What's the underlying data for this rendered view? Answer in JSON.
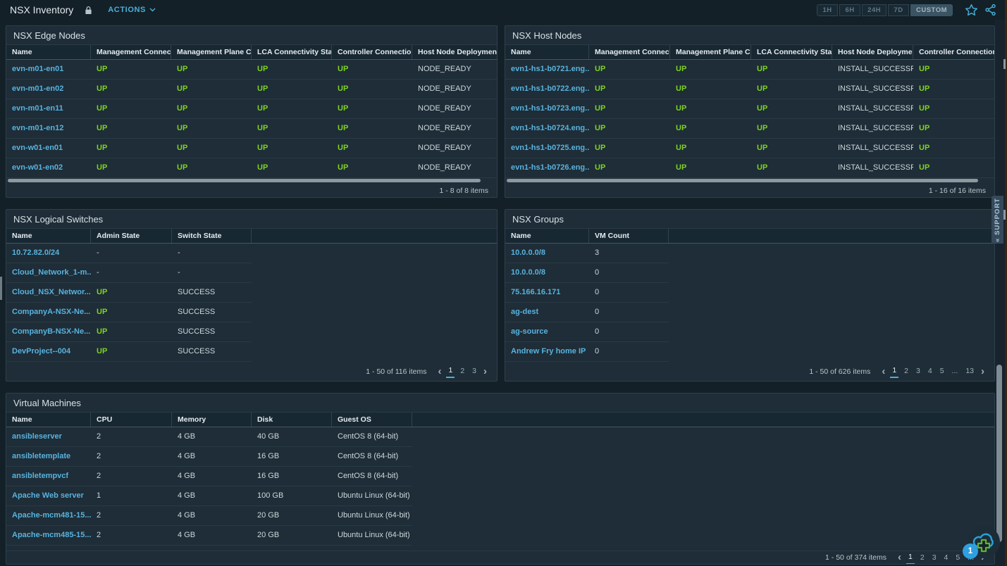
{
  "topbar": {
    "title": "NSX Inventory",
    "actions_label": "ACTIONS",
    "time_ranges": [
      "1H",
      "6H",
      "24H",
      "7D",
      "CUSTOM"
    ],
    "selected_time_range": "CUSTOM"
  },
  "panels": {
    "edge_nodes": {
      "title": "NSX Edge Nodes",
      "columns": [
        "Name",
        "Management Connection...",
        "Management Plane Conn...",
        "LCA Connectivity Status",
        "Controller Connection St...",
        "Host Node Deployment ..."
      ],
      "rows": [
        [
          "evn-m01-en01",
          "UP",
          "UP",
          "UP",
          "UP",
          "NODE_READY"
        ],
        [
          "evn-m01-en02",
          "UP",
          "UP",
          "UP",
          "UP",
          "NODE_READY"
        ],
        [
          "evn-m01-en11",
          "UP",
          "UP",
          "UP",
          "UP",
          "NODE_READY"
        ],
        [
          "evn-m01-en12",
          "UP",
          "UP",
          "UP",
          "UP",
          "NODE_READY"
        ],
        [
          "evn-w01-en01",
          "UP",
          "UP",
          "UP",
          "UP",
          "NODE_READY"
        ],
        [
          "evn-w01-en02",
          "UP",
          "UP",
          "UP",
          "UP",
          "NODE_READY"
        ]
      ],
      "pager": {
        "label": "1 - 8 of 8 items",
        "pages": []
      }
    },
    "host_nodes": {
      "title": "NSX Host Nodes",
      "columns": [
        "Name",
        "Management Connection...",
        "Management Plane Conn...",
        "LCA Connectivity Status",
        "Host Node Deployment ...",
        "Controller Connection St..."
      ],
      "rows": [
        [
          "evn1-hs1-b0721.eng...",
          "UP",
          "UP",
          "UP",
          "INSTALL_SUCCESSF...",
          "UP"
        ],
        [
          "evn1-hs1-b0722.eng...",
          "UP",
          "UP",
          "UP",
          "INSTALL_SUCCESSF...",
          "UP"
        ],
        [
          "evn1-hs1-b0723.eng...",
          "UP",
          "UP",
          "UP",
          "INSTALL_SUCCESSF...",
          "UP"
        ],
        [
          "evn1-hs1-b0724.eng...",
          "UP",
          "UP",
          "UP",
          "INSTALL_SUCCESSF...",
          "UP"
        ],
        [
          "evn1-hs1-b0725.eng...",
          "UP",
          "UP",
          "UP",
          "INSTALL_SUCCESSF...",
          "UP"
        ],
        [
          "evn1-hs1-b0726.eng...",
          "UP",
          "UP",
          "UP",
          "INSTALL_SUCCESSF...",
          "UP"
        ]
      ],
      "pager": {
        "label": "1 - 16 of 16 items",
        "pages": []
      }
    },
    "logical_switches": {
      "title": "NSX Logical Switches",
      "columns": [
        "Name",
        "Admin State",
        "Switch State"
      ],
      "rows": [
        [
          "10.72.82.0/24",
          "-",
          "-"
        ],
        [
          "Cloud_Network_1-m...",
          "-",
          "-"
        ],
        [
          "Cloud_NSX_Networ...",
          "UP",
          "SUCCESS"
        ],
        [
          "CompanyA-NSX-Ne...",
          "UP",
          "SUCCESS"
        ],
        [
          "CompanyB-NSX-Ne...",
          "UP",
          "SUCCESS"
        ],
        [
          "DevProject--004",
          "UP",
          "SUCCESS"
        ]
      ],
      "pager": {
        "label": "1 - 50 of 116 items",
        "pages": [
          "1",
          "2",
          "3"
        ],
        "selected": "1"
      }
    },
    "groups": {
      "title": "NSX Groups",
      "columns": [
        "Name",
        "VM Count"
      ],
      "rows": [
        [
          "10.0.0.0/8",
          "3"
        ],
        [
          "10.0.0.0/8",
          "0"
        ],
        [
          "75.166.16.171",
          "0"
        ],
        [
          "ag-dest",
          "0"
        ],
        [
          "ag-source",
          "0"
        ],
        [
          "Andrew Fry home IP",
          "0"
        ]
      ],
      "pager": {
        "label": "1 - 50 of 626 items",
        "pages": [
          "1",
          "2",
          "3",
          "4",
          "5",
          "...",
          "13"
        ],
        "selected": "1"
      }
    },
    "virtual_machines": {
      "title": "Virtual Machines",
      "columns": [
        "Name",
        "CPU",
        "Memory",
        "Disk",
        "Guest OS"
      ],
      "rows": [
        [
          "ansibleserver",
          "2",
          "4 GB",
          "40 GB",
          "CentOS 8 (64-bit)"
        ],
        [
          "ansibletemplate",
          "2",
          "4 GB",
          "16 GB",
          "CentOS 8 (64-bit)"
        ],
        [
          "ansibletempvcf",
          "2",
          "4 GB",
          "16 GB",
          "CentOS 8 (64-bit)"
        ],
        [
          "Apache Web server",
          "1",
          "4 GB",
          "100 GB",
          "Ubuntu Linux (64-bit)"
        ],
        [
          "Apache-mcm481-15...",
          "2",
          "4 GB",
          "20 GB",
          "Ubuntu Linux (64-bit)"
        ],
        [
          "Apache-mcm485-15...",
          "2",
          "4 GB",
          "20 GB",
          "Ubuntu Linux (64-bit)"
        ]
      ],
      "pager": {
        "label": "1 - 50 of 374 items",
        "pages": [
          "1",
          "2",
          "3",
          "4",
          "5",
          "..."
        ],
        "selected": "1"
      }
    }
  },
  "support_tab": {
    "label": "« SUPPORT"
  },
  "fab": {
    "badge": "1"
  },
  "colors": {
    "accent_blue": "#49afd9",
    "link_blue": "#59b2de",
    "status_green": "#7ed321"
  }
}
